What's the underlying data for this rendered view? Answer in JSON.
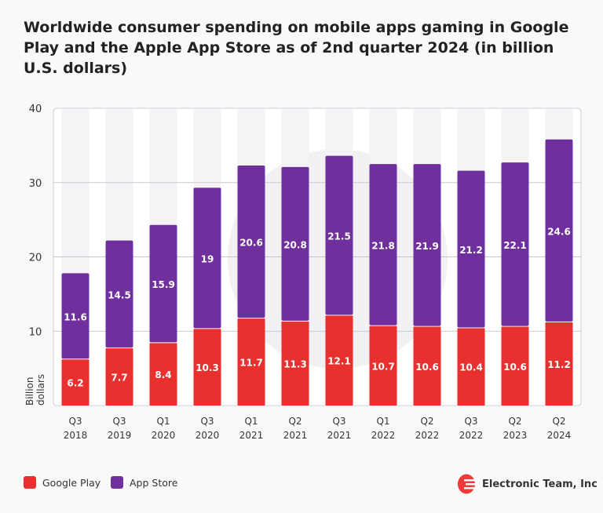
{
  "chart_data": {
    "type": "bar",
    "stacked": true,
    "title": "Worldwide consumer spending on mobile apps gaming in Google Play and the Apple App Store as of 2nd quarter 2024 (in billion U.S. dollars)",
    "ylabel": "Billion dollars",
    "ylim": [
      0,
      40
    ],
    "yticks": [
      10,
      20,
      30,
      40
    ],
    "grid": true,
    "legend_placement": "bottom-left",
    "categories": [
      [
        "Q3",
        "2018"
      ],
      [
        "Q3",
        "2019"
      ],
      [
        "Q1",
        "2020"
      ],
      [
        "Q3",
        "2020"
      ],
      [
        "Q1",
        "2021"
      ],
      [
        "Q2",
        "2021"
      ],
      [
        "Q3",
        "2021"
      ],
      [
        "Q1",
        "2022"
      ],
      [
        "Q2",
        "2022"
      ],
      [
        "Q3",
        "2022"
      ],
      [
        "Q2",
        "2023"
      ],
      [
        "Q2",
        "2024"
      ]
    ],
    "series": [
      {
        "name": "Google Play",
        "color": "#e8302e",
        "values": [
          6.2,
          7.7,
          8.4,
          10.3,
          11.7,
          11.3,
          12.1,
          10.7,
          10.6,
          10.4,
          10.6,
          11.2
        ]
      },
      {
        "name": "App Store",
        "color": "#6f2f9c",
        "values": [
          11.6,
          14.5,
          15.9,
          19,
          20.6,
          20.8,
          21.5,
          21.8,
          21.9,
          21.2,
          22.1,
          24.6
        ]
      }
    ]
  },
  "brand": {
    "name": "Electronic Team, Inc",
    "color": "#f03a3a"
  }
}
